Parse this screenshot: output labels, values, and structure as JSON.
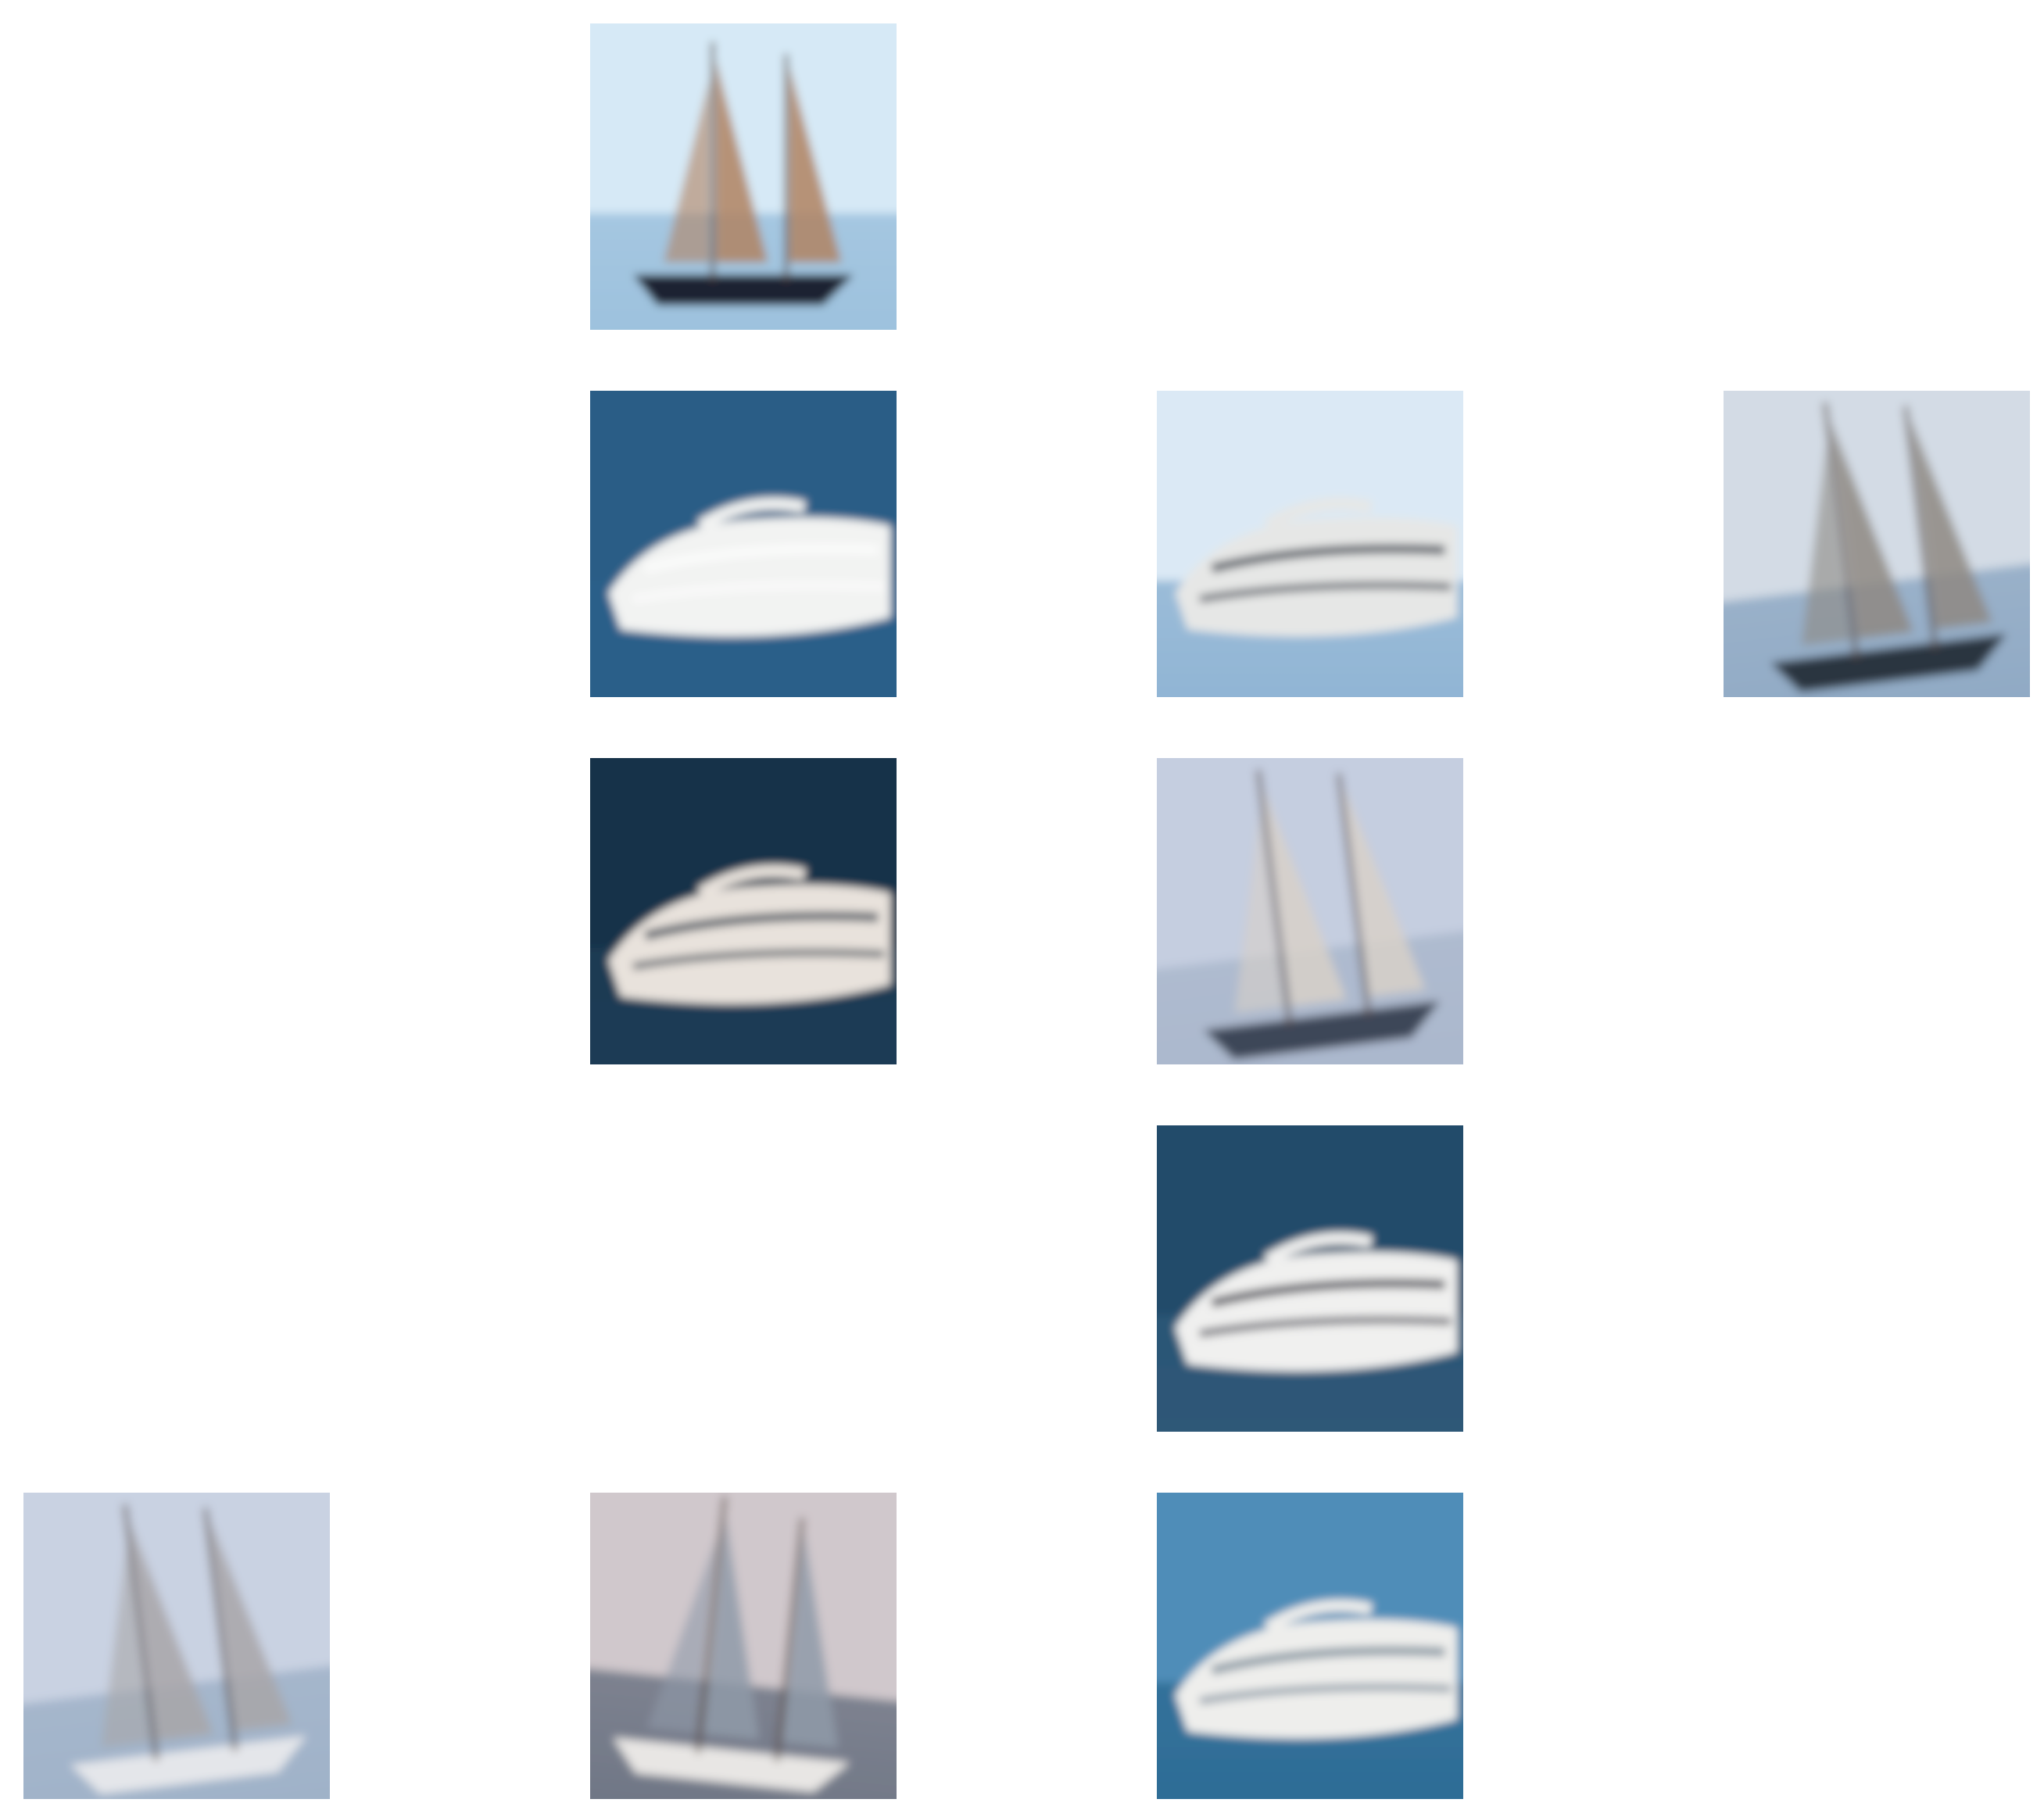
{
  "grid": {
    "rows": 5,
    "cols": 4,
    "background": "#ffffff"
  },
  "tiles": [
    {
      "row": 0,
      "col": 1,
      "subject": "schooner-sailboat",
      "sky": "#d6e9f6",
      "sea": "#9cc1dd",
      "hull": "#1c2430",
      "sail": "#b08260",
      "tilted": false
    },
    {
      "row": 1,
      "col": 1,
      "subject": "motor-yacht",
      "sky": "#2a5d86",
      "sea": "#2b5f89",
      "hull": "#f2f3f2",
      "sail": "#ffffff",
      "tilted": false
    },
    {
      "row": 1,
      "col": 2,
      "subject": "motor-yacht",
      "sky": "#dbe9f5",
      "sea": "#8fb4d4",
      "hull": "#e6e7e6",
      "sail": "#2a2f3a",
      "tilted": false
    },
    {
      "row": 1,
      "col": 3,
      "subject": "schooner-sailboat",
      "sky": "#d3dbe5",
      "sea": "#8fa9c4",
      "hull": "#2c3441",
      "sail": "#8e8882",
      "tilted": true
    },
    {
      "row": 2,
      "col": 1,
      "subject": "motor-yacht",
      "sky": "#17334a",
      "sea": "#1d3c55",
      "hull": "#e8e2dc",
      "sail": "#2a3440",
      "tilted": false
    },
    {
      "row": 2,
      "col": 2,
      "subject": "tall-ship",
      "sky": "#c5cee0",
      "sea": "#aab7cc",
      "hull": "#3c4658",
      "sail": "#d7d0c8",
      "tilted": true
    },
    {
      "row": 3,
      "col": 2,
      "subject": "motor-yacht",
      "sky": "#234c6b",
      "sea": "#2e5878",
      "hull": "#f0f0ef",
      "sail": "#2a2a35",
      "tilted": false
    },
    {
      "row": 4,
      "col": 0,
      "subject": "schooner-sailboat",
      "sky": "#c9d2e2",
      "sea": "#9fb1c8",
      "hull": "#e4e6ea",
      "sail": "#a8a6a8",
      "tilted": true
    },
    {
      "row": 4,
      "col": 1,
      "subject": "sailboat",
      "sky": "#d0c8cc",
      "sea": "#6f7685",
      "hull": "#e8e6e4",
      "sail": "#8f9aa8",
      "tilted": true
    },
    {
      "row": 4,
      "col": 2,
      "subject": "motor-yacht",
      "sky": "#4f8db8",
      "sea": "#2e6c95",
      "hull": "#eeeeec",
      "sail": "#6a7c8c",
      "tilted": false
    }
  ]
}
